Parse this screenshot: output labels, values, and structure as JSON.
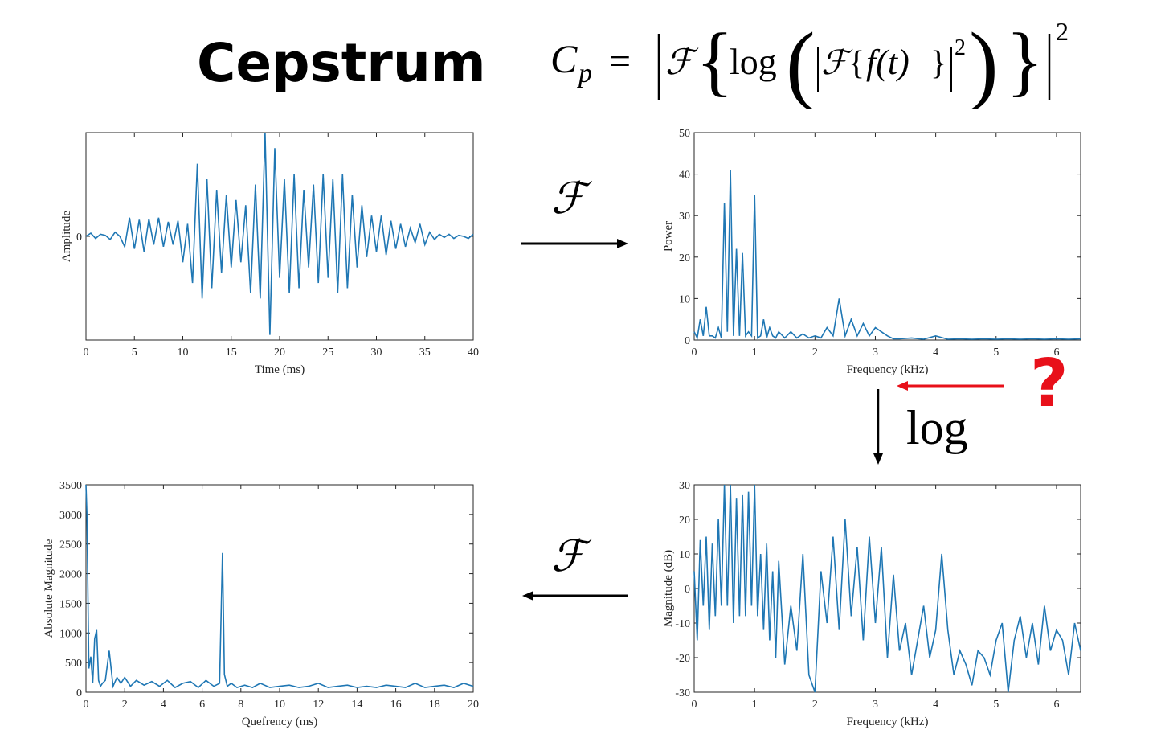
{
  "title": "Cepstrum",
  "formula": {
    "lhs": "C",
    "lhs_sub": "p",
    "equals": "=",
    "fourier": "ℱ",
    "log": "log",
    "ft": "f(t)",
    "exp_inner": "2",
    "exp_outer": "2"
  },
  "operators": {
    "fourier_top": "ℱ",
    "fourier_bottom": "ℱ",
    "log": "log",
    "question": "?"
  },
  "colors": {
    "line": "#1f77b4",
    "arrow_red": "#e8101a",
    "axis": "#262626"
  },
  "chart_data": [
    {
      "id": "time",
      "type": "line",
      "xlabel": "Time (ms)",
      "ylabel": "Amplitude",
      "xlim": [
        0,
        40
      ],
      "ylim": [
        -1,
        1
      ],
      "xticks": [
        0,
        5,
        10,
        15,
        20,
        25,
        30,
        35,
        40
      ],
      "yticks": [
        0
      ],
      "series": [
        {
          "x": [
            0,
            0.5,
            1,
            1.5,
            2,
            2.5,
            3,
            3.5,
            4,
            4.5,
            5,
            5.5,
            6,
            6.5,
            7,
            7.5,
            8,
            8.5,
            9,
            9.5,
            10,
            10.5,
            11,
            11.5,
            12,
            12.5,
            13,
            13.5,
            14,
            14.5,
            15,
            15.5,
            16,
            16.5,
            17,
            17.5,
            18,
            18.5,
            19,
            19.5,
            20,
            20.5,
            21,
            21.5,
            22,
            22.5,
            23,
            23.5,
            24,
            24.5,
            25,
            25.5,
            26,
            26.5,
            27,
            27.5,
            28,
            28.5,
            29,
            29.5,
            30,
            30.5,
            31,
            31.5,
            32,
            32.5,
            33,
            33.5,
            34,
            34.5,
            35,
            35.5,
            36,
            36.5,
            37,
            37.5,
            38,
            38.5,
            39,
            39.5,
            40
          ],
          "y": [
            0,
            0.03,
            -0.02,
            0.02,
            0.01,
            -0.03,
            0.04,
            0.0,
            -0.1,
            0.18,
            -0.12,
            0.16,
            -0.15,
            0.17,
            -0.08,
            0.18,
            -0.1,
            0.14,
            -0.08,
            0.15,
            -0.25,
            0.12,
            -0.45,
            0.7,
            -0.6,
            0.55,
            -0.5,
            0.45,
            -0.35,
            0.4,
            -0.3,
            0.35,
            -0.25,
            0.3,
            -0.55,
            0.5,
            -0.6,
            1.0,
            -0.95,
            0.85,
            -0.4,
            0.55,
            -0.55,
            0.6,
            -0.5,
            0.45,
            -0.3,
            0.5,
            -0.45,
            0.6,
            -0.4,
            0.55,
            -0.55,
            0.6,
            -0.5,
            0.4,
            -0.3,
            0.3,
            -0.2,
            0.2,
            -0.15,
            0.2,
            -0.18,
            0.15,
            -0.12,
            0.12,
            -0.1,
            0.08,
            -0.06,
            0.12,
            -0.08,
            0.04,
            -0.03,
            0.02,
            -0.01,
            0.02,
            -0.02,
            0.01,
            0.0,
            -0.02,
            0.02
          ]
        }
      ]
    },
    {
      "id": "power",
      "type": "line",
      "xlabel": "Frequency (kHz)",
      "ylabel": "Power",
      "xlim": [
        0,
        6.4
      ],
      "ylim": [
        0,
        50
      ],
      "xticks": [
        0,
        1,
        2,
        3,
        4,
        5,
        6
      ],
      "yticks": [
        0,
        10,
        20,
        30,
        40,
        50
      ],
      "series": [
        {
          "x": [
            0,
            0.05,
            0.1,
            0.15,
            0.2,
            0.25,
            0.3,
            0.35,
            0.4,
            0.45,
            0.5,
            0.55,
            0.6,
            0.65,
            0.7,
            0.75,
            0.8,
            0.85,
            0.9,
            0.95,
            1.0,
            1.05,
            1.1,
            1.15,
            1.2,
            1.25,
            1.3,
            1.35,
            1.4,
            1.5,
            1.6,
            1.7,
            1.8,
            1.9,
            2.0,
            2.1,
            2.2,
            2.3,
            2.4,
            2.5,
            2.6,
            2.7,
            2.8,
            2.9,
            3.0,
            3.1,
            3.2,
            3.3,
            3.4,
            3.6,
            3.8,
            4.0,
            4.2,
            4.4,
            4.6,
            4.8,
            5.0,
            5.2,
            5.4,
            5.6,
            5.8,
            6.0,
            6.2,
            6.4
          ],
          "y": [
            2,
            0.5,
            5,
            1,
            8,
            1,
            1,
            0.5,
            3,
            0.5,
            33,
            2,
            41,
            1,
            22,
            1,
            21,
            1,
            2,
            1,
            35,
            0.5,
            1,
            5,
            0.5,
            3,
            1,
            0.5,
            2,
            0.5,
            2,
            0.5,
            1.5,
            0.5,
            1,
            0.5,
            3,
            1,
            10,
            1,
            5,
            1,
            4,
            1,
            3,
            2,
            1,
            0.3,
            0.3,
            0.5,
            0.2,
            1,
            0.2,
            0.3,
            0.2,
            0.3,
            0.2,
            0.3,
            0.2,
            0.3,
            0.2,
            0.3,
            0.2,
            0.3
          ]
        }
      ]
    },
    {
      "id": "cepstrum",
      "type": "line",
      "xlabel": "Quefrency (ms)",
      "ylabel": "Absolute Magnitude",
      "xlim": [
        0,
        20
      ],
      "ylim": [
        0,
        3500
      ],
      "xticks": [
        0,
        2,
        4,
        6,
        8,
        10,
        12,
        14,
        16,
        18,
        20
      ],
      "yticks": [
        0,
        500,
        1000,
        1500,
        2000,
        2500,
        3000,
        3500
      ],
      "series": [
        {
          "x": [
            0,
            0.05,
            0.15,
            0.25,
            0.35,
            0.45,
            0.55,
            0.65,
            0.75,
            0.85,
            1.0,
            1.2,
            1.4,
            1.6,
            1.8,
            2.0,
            2.3,
            2.6,
            3.0,
            3.4,
            3.8,
            4.2,
            4.6,
            5.0,
            5.4,
            5.8,
            6.2,
            6.6,
            6.9,
            7.05,
            7.15,
            7.3,
            7.5,
            7.8,
            8.2,
            8.6,
            9.0,
            9.5,
            10,
            10.5,
            11,
            11.5,
            12,
            12.5,
            13,
            13.5,
            14,
            14.5,
            15,
            15.5,
            16,
            16.5,
            17,
            17.5,
            18,
            18.5,
            19,
            19.5,
            20
          ],
          "y": [
            3500,
            3000,
            400,
            600,
            150,
            900,
            1050,
            200,
            100,
            150,
            200,
            700,
            100,
            250,
            150,
            250,
            100,
            200,
            120,
            180,
            100,
            200,
            80,
            150,
            180,
            80,
            200,
            100,
            150,
            2350,
            300,
            100,
            150,
            80,
            120,
            80,
            150,
            80,
            100,
            120,
            80,
            100,
            150,
            80,
            100,
            120,
            80,
            100,
            80,
            120,
            100,
            80,
            150,
            80,
            100,
            120,
            80,
            150,
            100
          ]
        }
      ]
    },
    {
      "id": "logmag",
      "type": "line",
      "xlabel": "Frequency (kHz)",
      "ylabel": "Magnitude (dB)",
      "xlim": [
        0,
        6.4
      ],
      "ylim": [
        -30,
        30
      ],
      "xticks": [
        0,
        1,
        2,
        3,
        4,
        5,
        6
      ],
      "yticks": [
        -30,
        -20,
        -10,
        0,
        10,
        20,
        30
      ],
      "series": [
        {
          "x": [
            0,
            0.05,
            0.1,
            0.15,
            0.2,
            0.25,
            0.3,
            0.35,
            0.4,
            0.45,
            0.5,
            0.55,
            0.6,
            0.65,
            0.7,
            0.75,
            0.8,
            0.85,
            0.9,
            0.95,
            1.0,
            1.05,
            1.1,
            1.15,
            1.2,
            1.25,
            1.3,
            1.35,
            1.4,
            1.5,
            1.6,
            1.7,
            1.8,
            1.9,
            2.0,
            2.1,
            2.2,
            2.3,
            2.4,
            2.5,
            2.6,
            2.7,
            2.8,
            2.9,
            3.0,
            3.1,
            3.2,
            3.3,
            3.4,
            3.5,
            3.6,
            3.7,
            3.8,
            3.9,
            4.0,
            4.1,
            4.2,
            4.3,
            4.4,
            4.5,
            4.6,
            4.7,
            4.8,
            4.9,
            5.0,
            5.1,
            5.2,
            5.3,
            5.4,
            5.5,
            5.6,
            5.7,
            5.8,
            5.9,
            6.0,
            6.1,
            6.2,
            6.3,
            6.4
          ],
          "y": [
            5,
            -15,
            14,
            -5,
            15,
            -12,
            13,
            -8,
            20,
            -5,
            30,
            -5,
            32,
            -10,
            26,
            -8,
            27,
            -8,
            28,
            -5,
            31,
            -8,
            10,
            -12,
            13,
            -15,
            5,
            -20,
            8,
            -22,
            -5,
            -18,
            10,
            -25,
            -30,
            5,
            -10,
            15,
            -12,
            20,
            -8,
            12,
            -15,
            15,
            -10,
            12,
            -20,
            4,
            -18,
            -10,
            -25,
            -15,
            -5,
            -20,
            -12,
            10,
            -12,
            -25,
            -18,
            -22,
            -28,
            -18,
            -20,
            -25,
            -15,
            -10,
            -30,
            -15,
            -8,
            -20,
            -10,
            -22,
            -5,
            -18,
            -12,
            -15,
            -25,
            -10,
            -18
          ]
        }
      ]
    }
  ]
}
